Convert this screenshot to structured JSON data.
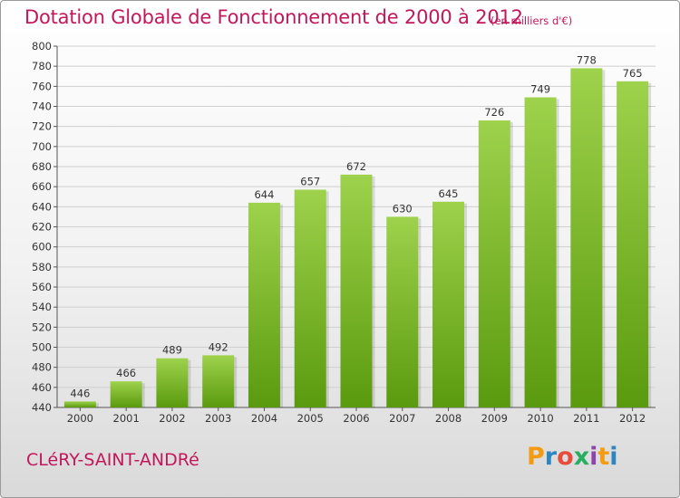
{
  "header": {
    "title": "Dotation Globale de Fonctionnement de 2000 à 2012",
    "unit": "(en milliers d'€)"
  },
  "footer": {
    "commune": "CLéRY-SAINT-ANDRé",
    "logo": "Proxiti"
  },
  "colors": {
    "title": "#c2185b",
    "bar_top": "#9ed24c",
    "bar_bottom": "#5a9a0e",
    "grid": "#cfcfcf"
  },
  "chart_data": {
    "type": "bar",
    "title": "Dotation Globale de Fonctionnement de 2000 à 2012",
    "xlabel": "",
    "ylabel": "",
    "categories": [
      "2000",
      "2001",
      "2002",
      "2003",
      "2004",
      "2005",
      "2006",
      "2007",
      "2008",
      "2009",
      "2010",
      "2011",
      "2012"
    ],
    "values": [
      446,
      466,
      489,
      492,
      644,
      657,
      672,
      630,
      645,
      726,
      749,
      778,
      765
    ],
    "ylim": [
      440,
      800
    ],
    "yticks": [
      440,
      460,
      480,
      500,
      520,
      540,
      560,
      580,
      600,
      620,
      640,
      660,
      680,
      700,
      720,
      740,
      760,
      780,
      800
    ],
    "grid": true,
    "data_labels": true
  }
}
